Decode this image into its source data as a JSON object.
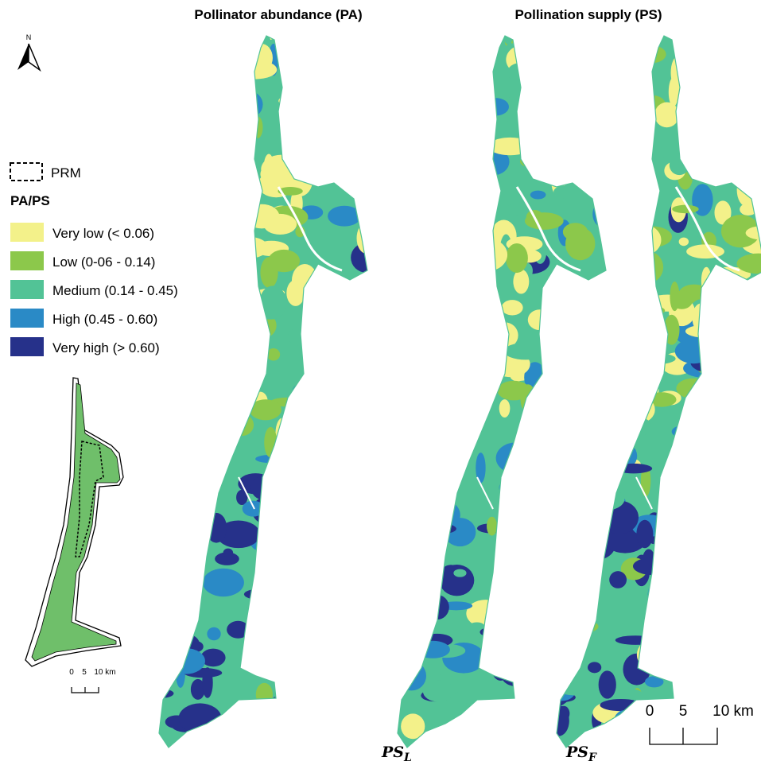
{
  "titles": [
    "Pollinator abundance (PA)",
    "Pollination supply (PS)"
  ],
  "north": "N",
  "legend": {
    "boundary": "PRM",
    "heading": "PA/PS",
    "classes": [
      {
        "label": "Very low (< 0.06)",
        "color": "#f3f18a"
      },
      {
        "label": "Low (0-06 - 0.14)",
        "color": "#8cc84b"
      },
      {
        "label": "Medium (0.14 - 0.45)",
        "color": "#52c396"
      },
      {
        "label": "High (0.45 - 0.60)",
        "color": "#2a8ac6"
      },
      {
        "label": "Very high (> 0.60)",
        "color": "#26318a"
      }
    ]
  },
  "inset_scale": [
    "0",
    "5",
    "10 km"
  ],
  "scale": [
    "0",
    "5",
    "10 km"
  ],
  "map_labels": [
    {
      "base": "PS",
      "sub": "L"
    },
    {
      "base": "PS",
      "sub": "F"
    }
  ]
}
